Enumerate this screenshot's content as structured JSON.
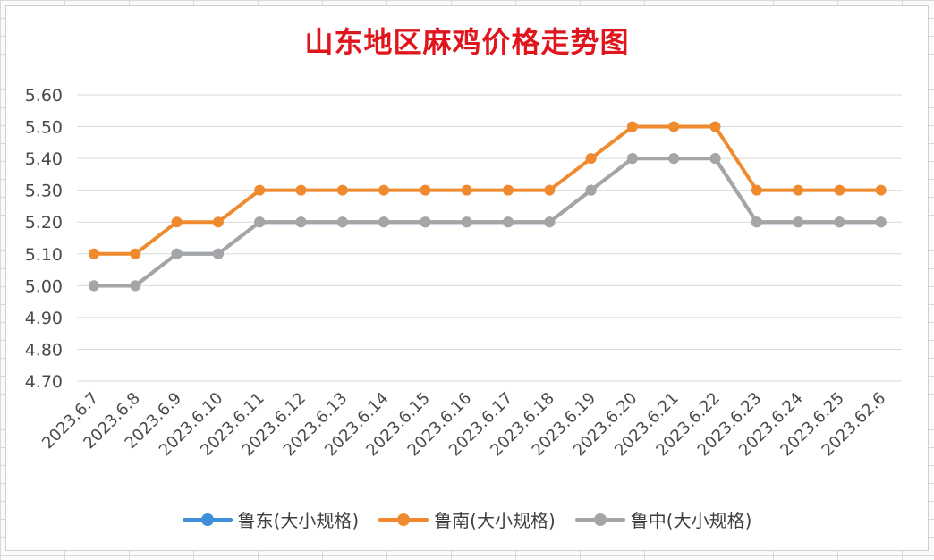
{
  "chart_data": {
    "type": "line",
    "title": "山东地区麻鸡价格走势图",
    "categories": [
      "2023.6.7",
      "2023.6.8",
      "2023.6.9",
      "2023.6.10",
      "2023.6.11",
      "2023.6.12",
      "2023.6.13",
      "2023.6.14",
      "2023.6.15",
      "2023.6.16",
      "2023.6.17",
      "2023.6.18",
      "2023.6.19",
      "2023.6.20",
      "2023.6.21",
      "2023.6.22",
      "2023.6.23",
      "2023.6.24",
      "2023.6.25",
      "2023.62.6"
    ],
    "ylim": [
      4.7,
      5.6
    ],
    "yticks": [
      "5.60",
      "5.50",
      "5.40",
      "5.30",
      "5.20",
      "5.10",
      "5.00",
      "4.90",
      "4.80",
      "4.70"
    ],
    "grid": true,
    "legend_position": "bottom",
    "series": [
      {
        "name": "鲁东(大小规格)",
        "color": "#3e8ed8",
        "values": [
          5.0,
          5.0,
          5.1,
          5.1,
          5.2,
          5.2,
          5.2,
          5.2,
          5.2,
          5.2,
          5.2,
          5.2,
          5.3,
          5.4,
          5.4,
          5.4,
          5.2,
          5.2,
          5.2,
          5.2
        ]
      },
      {
        "name": "鲁南(大小规格)",
        "color": "#ef8a2e",
        "values": [
          5.1,
          5.1,
          5.2,
          5.2,
          5.3,
          5.3,
          5.3,
          5.3,
          5.3,
          5.3,
          5.3,
          5.3,
          5.4,
          5.5,
          5.5,
          5.5,
          5.3,
          5.3,
          5.3,
          5.3
        ]
      },
      {
        "name": "鲁中(大小规格)",
        "color": "#a5a5a5",
        "values": [
          5.0,
          5.0,
          5.1,
          5.1,
          5.2,
          5.2,
          5.2,
          5.2,
          5.2,
          5.2,
          5.2,
          5.2,
          5.3,
          5.4,
          5.4,
          5.4,
          5.2,
          5.2,
          5.2,
          5.2
        ]
      }
    ]
  }
}
